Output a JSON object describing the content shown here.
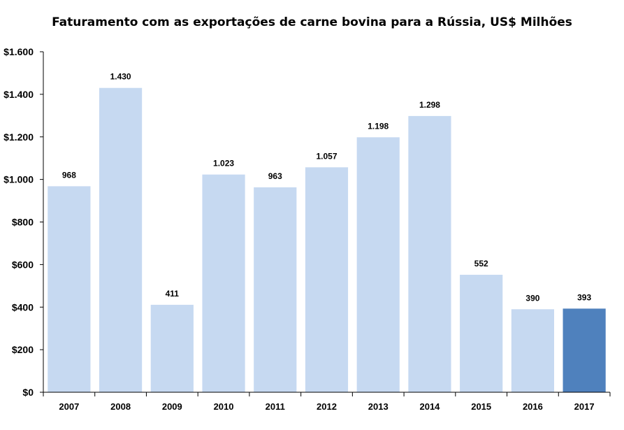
{
  "chart_data": {
    "type": "bar",
    "title": "Faturamento com as exportações de carne bovina para a Rússia, US$ Milhões",
    "xlabel": "",
    "ylabel": "",
    "categories": [
      "2007",
      "2008",
      "2009",
      "2010",
      "2011",
      "2012",
      "2013",
      "2014",
      "2015",
      "2016",
      "2017"
    ],
    "values": [
      968,
      1430,
      411,
      1023,
      963,
      1057,
      1198,
      1298,
      552,
      390,
      393
    ],
    "value_labels": [
      "968",
      "1.430",
      "411",
      "1.023",
      "963",
      "1.057",
      "1.198",
      "1.298",
      "552",
      "390",
      "393"
    ],
    "ylim": [
      0,
      1600
    ],
    "yticks": [
      0,
      200,
      400,
      600,
      800,
      1000,
      1200,
      1400,
      1600
    ],
    "ytick_labels": [
      "$0",
      "$200",
      "$400",
      "$600",
      "$800",
      "$1.000",
      "$1.200",
      "$1.400",
      "$1.600"
    ],
    "grid": false,
    "legend": "none",
    "colors": {
      "bar": "#c6d9f1",
      "highlight_bar": "#4f81bd",
      "axis": "#000000"
    },
    "highlight_category": "2017"
  }
}
